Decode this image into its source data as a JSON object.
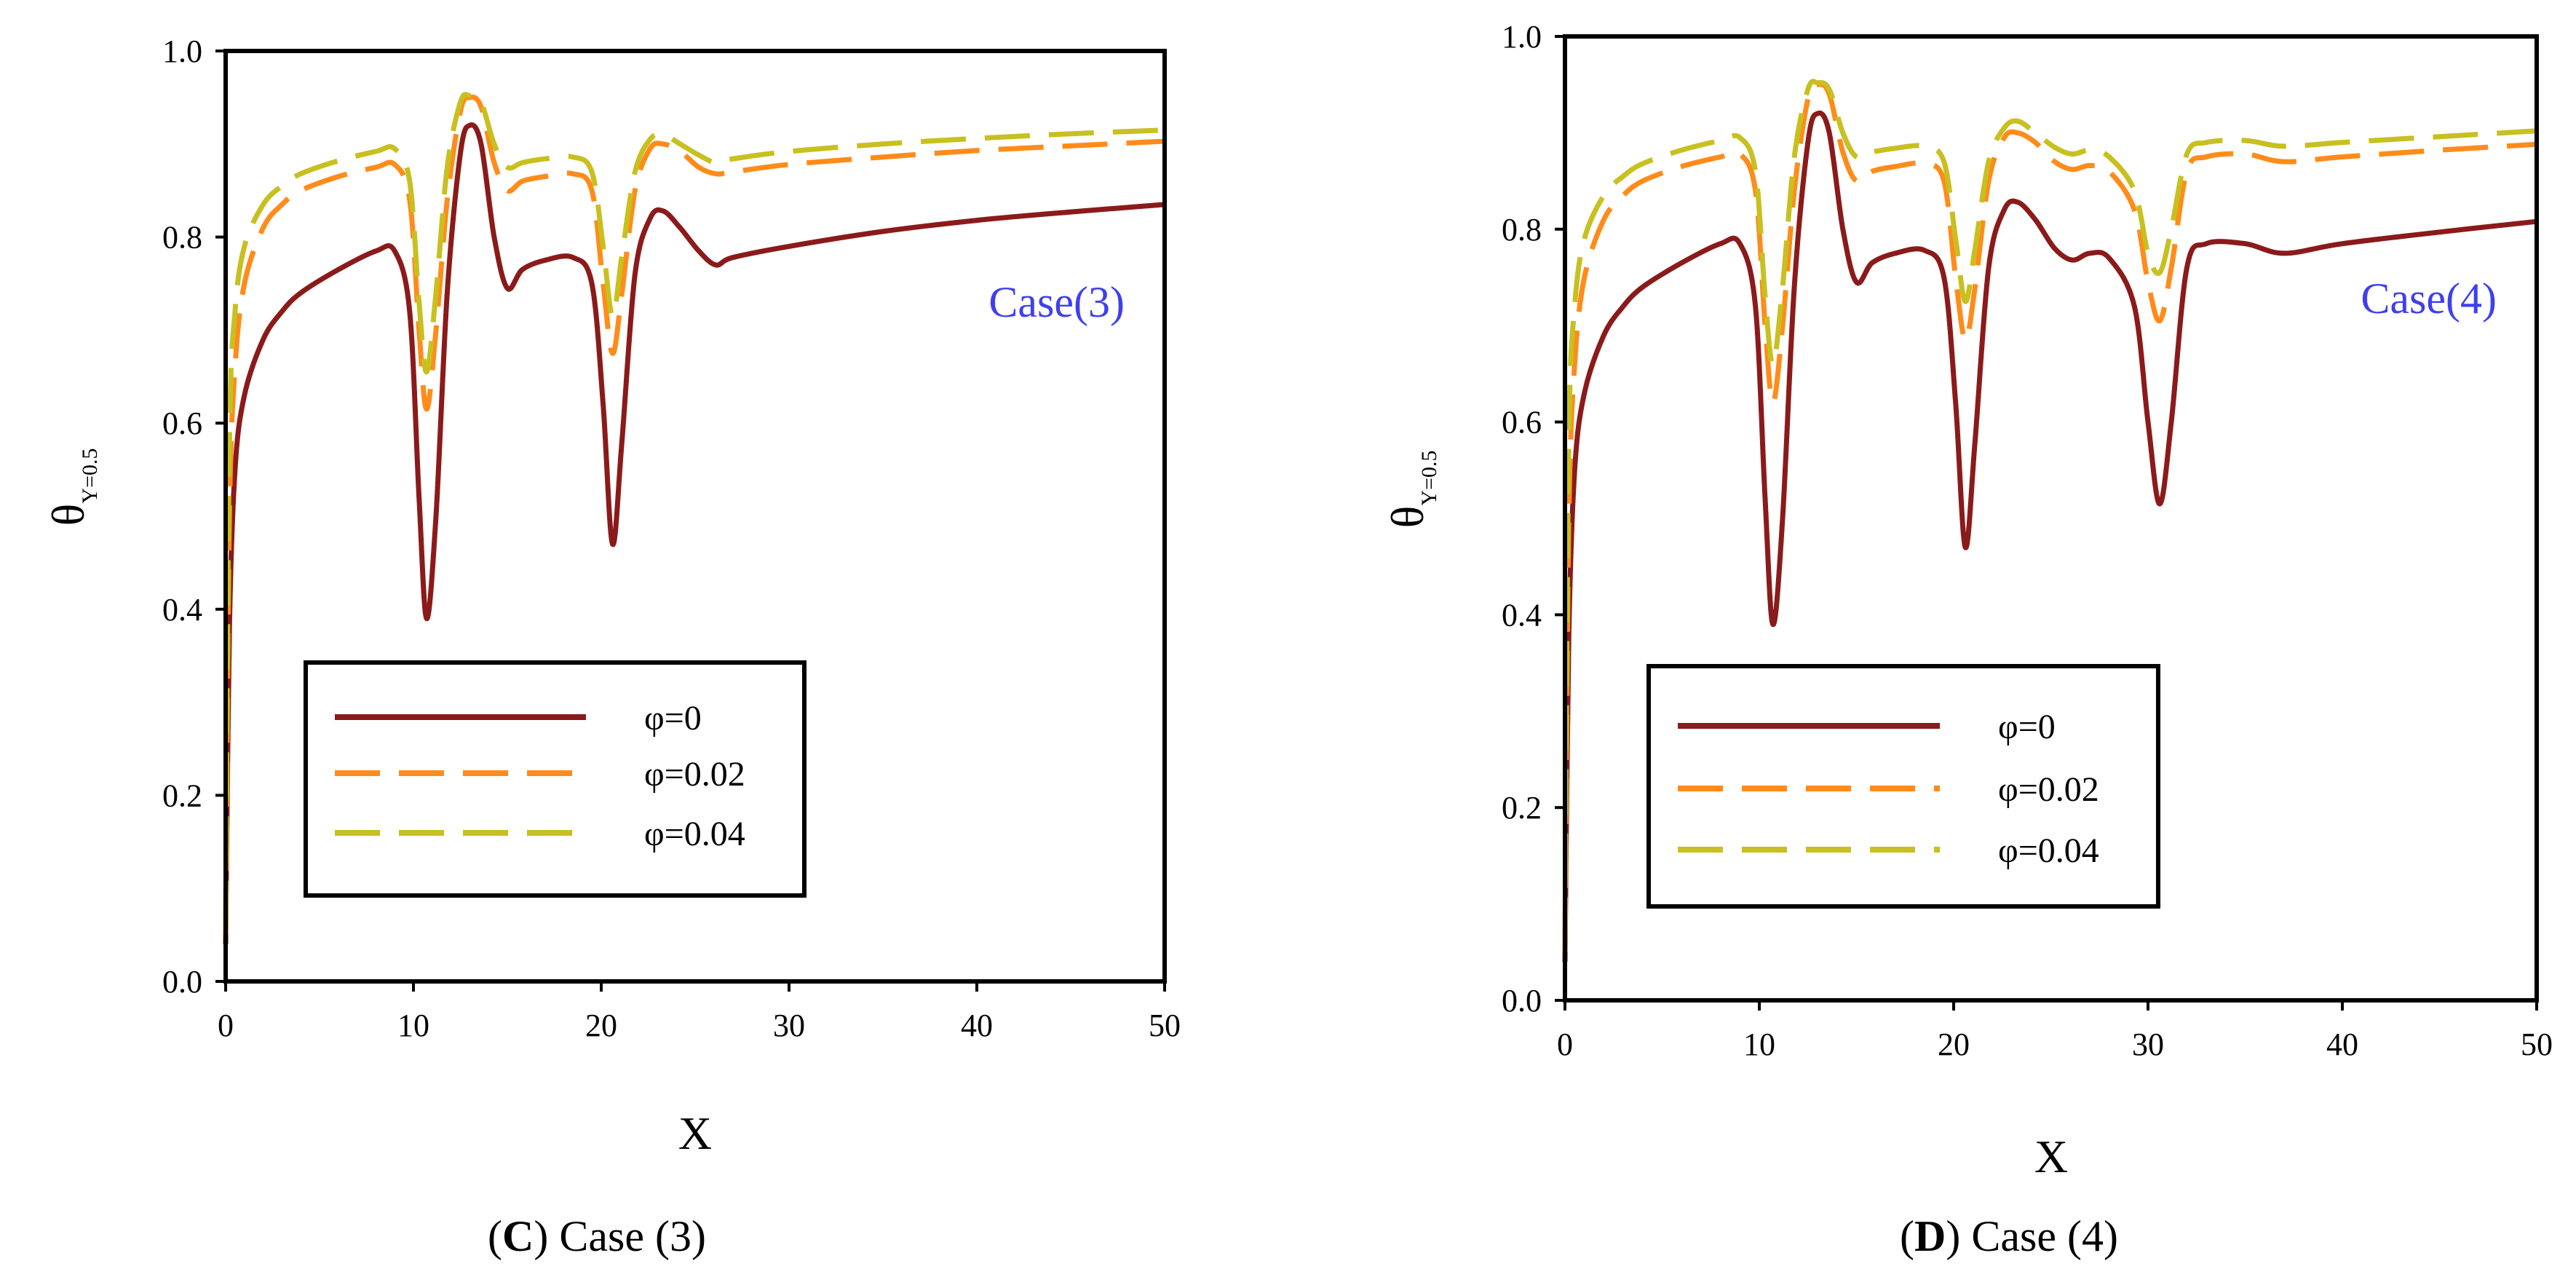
{
  "chart_data": [
    {
      "type": "line",
      "panel": "C",
      "caption_letter": "C",
      "caption_text": " Case (3)",
      "annotation": "Case(3)",
      "title": "",
      "xlabel": "X",
      "ylabel": "θ",
      "ylabel_sub": "Y=0.5",
      "xlim": [
        0,
        50
      ],
      "ylim": [
        0,
        1.0
      ],
      "xticks": [
        0,
        10,
        20,
        30,
        40,
        50
      ],
      "yticks": [
        0.0,
        0.2,
        0.4,
        0.6,
        0.8,
        1.0
      ],
      "xtick_labels": [
        "0",
        "10",
        "20",
        "30",
        "40",
        "50"
      ],
      "ytick_labels": [
        "0.0",
        "0.2",
        "0.4",
        "0.6",
        "0.8",
        "1.0"
      ],
      "legend": [
        "φ=0",
        "φ=0.02",
        "φ=0.04"
      ],
      "series": [
        {
          "name": "φ=0",
          "color": "#8b1a1a",
          "dash": "solid",
          "x": [
            0,
            0.2,
            0.5,
            1,
            2,
            3,
            4,
            6,
            8,
            9,
            9.8,
            10.3,
            10.7,
            11.2,
            11.8,
            12.5,
            13,
            13.6,
            14.3,
            15,
            15.8,
            17,
            18.5,
            19.5,
            20.1,
            20.6,
            21.1,
            21.8,
            22.6,
            23.3,
            24.2,
            25.2,
            26.1,
            27,
            30,
            35,
            40,
            45,
            50
          ],
          "y": [
            0.04,
            0.38,
            0.55,
            0.63,
            0.69,
            0.72,
            0.74,
            0.765,
            0.785,
            0.785,
            0.72,
            0.52,
            0.39,
            0.5,
            0.74,
            0.89,
            0.92,
            0.9,
            0.8,
            0.745,
            0.765,
            0.775,
            0.778,
            0.75,
            0.62,
            0.47,
            0.58,
            0.76,
            0.82,
            0.828,
            0.81,
            0.785,
            0.77,
            0.778,
            0.79,
            0.806,
            0.818,
            0.827,
            0.835
          ]
        },
        {
          "name": "φ=0.02",
          "color": "#ff8c1a",
          "dash": "long",
          "x": [
            0,
            0.2,
            0.5,
            1,
            2,
            3,
            4,
            6,
            8,
            9,
            9.8,
            10.3,
            10.7,
            11.2,
            11.8,
            12.5,
            13,
            13.6,
            14.3,
            15,
            15.8,
            17,
            18.5,
            19.5,
            20.1,
            20.6,
            21.1,
            21.8,
            22.6,
            23.3,
            24.2,
            25.2,
            26.1,
            27,
            30,
            35,
            40,
            45,
            50
          ],
          "y": [
            0.05,
            0.5,
            0.66,
            0.75,
            0.81,
            0.835,
            0.85,
            0.865,
            0.875,
            0.878,
            0.84,
            0.7,
            0.615,
            0.7,
            0.84,
            0.935,
            0.95,
            0.94,
            0.88,
            0.85,
            0.86,
            0.865,
            0.868,
            0.85,
            0.75,
            0.675,
            0.74,
            0.85,
            0.895,
            0.9,
            0.892,
            0.875,
            0.868,
            0.87,
            0.878,
            0.886,
            0.893,
            0.898,
            0.903
          ]
        },
        {
          "name": "φ=0.04",
          "color": "#c8c020",
          "dash": "long",
          "x": [
            0,
            0.2,
            0.5,
            1,
            2,
            3,
            4,
            6,
            8,
            9,
            9.8,
            10.3,
            10.7,
            11.2,
            11.8,
            12.5,
            13,
            13.6,
            14.3,
            15,
            15.8,
            17,
            18.5,
            19.5,
            20.1,
            20.6,
            21.1,
            21.8,
            22.6,
            23.3,
            24.2,
            25.2,
            26.1,
            27,
            30,
            35,
            40,
            45,
            50
          ],
          "y": [
            0.06,
            0.58,
            0.72,
            0.79,
            0.835,
            0.855,
            0.868,
            0.882,
            0.892,
            0.895,
            0.86,
            0.73,
            0.655,
            0.74,
            0.875,
            0.945,
            0.952,
            0.945,
            0.9,
            0.875,
            0.88,
            0.884,
            0.886,
            0.87,
            0.79,
            0.715,
            0.78,
            0.87,
            0.905,
            0.91,
            0.9,
            0.888,
            0.88,
            0.884,
            0.892,
            0.9,
            0.906,
            0.911,
            0.915
          ]
        }
      ]
    },
    {
      "type": "line",
      "panel": "D",
      "caption_letter": "D",
      "caption_text": " Case (4)",
      "annotation": "Case(4)",
      "title": "",
      "xlabel": "X",
      "ylabel": "θ",
      "ylabel_sub": "Y=0.5",
      "xlim": [
        0,
        50
      ],
      "ylim": [
        0,
        1.0
      ],
      "xticks": [
        0,
        10,
        20,
        30,
        40,
        50
      ],
      "yticks": [
        0.0,
        0.2,
        0.4,
        0.6,
        0.8,
        1.0
      ],
      "xtick_labels": [
        "0",
        "10",
        "20",
        "30",
        "40",
        "50"
      ],
      "ytick_labels": [
        "0.0",
        "0.2",
        "0.4",
        "0.6",
        "0.8",
        "1.0"
      ],
      "legend": [
        "φ=0",
        "φ=0.02",
        "φ=0.04"
      ],
      "series": [
        {
          "name": "φ=0",
          "color": "#8b1a1a",
          "dash": "solid",
          "x": [
            0,
            0.2,
            0.5,
            1,
            2,
            3,
            4,
            6,
            8,
            9,
            9.8,
            10.3,
            10.7,
            11.2,
            11.8,
            12.5,
            13,
            13.6,
            14.3,
            15,
            15.8,
            17,
            18.5,
            19.5,
            20.1,
            20.6,
            21.1,
            21.8,
            22.6,
            23.3,
            24.2,
            25.2,
            26.1,
            27,
            28,
            29.3,
            30,
            30.6,
            31.2,
            32,
            33,
            35,
            37,
            40,
            45,
            50
          ],
          "y": [
            0.04,
            0.38,
            0.55,
            0.63,
            0.69,
            0.72,
            0.74,
            0.765,
            0.785,
            0.785,
            0.72,
            0.52,
            0.39,
            0.5,
            0.74,
            0.89,
            0.92,
            0.9,
            0.8,
            0.745,
            0.765,
            0.775,
            0.778,
            0.75,
            0.62,
            0.47,
            0.58,
            0.76,
            0.82,
            0.828,
            0.81,
            0.78,
            0.768,
            0.775,
            0.77,
            0.72,
            0.6,
            0.515,
            0.6,
            0.76,
            0.785,
            0.785,
            0.775,
            0.785,
            0.797,
            0.808
          ]
        },
        {
          "name": "φ=0.02",
          "color": "#ff8c1a",
          "dash": "long",
          "x": [
            0,
            0.2,
            0.5,
            1,
            2,
            3,
            4,
            6,
            8,
            9,
            9.8,
            10.3,
            10.7,
            11.2,
            11.8,
            12.5,
            13,
            13.6,
            14.3,
            15,
            15.8,
            17,
            18.5,
            19.5,
            20.1,
            20.6,
            21.1,
            21.8,
            22.6,
            23.3,
            24.2,
            25.2,
            26.1,
            27,
            28,
            29.3,
            30,
            30.6,
            31.2,
            32,
            33,
            35,
            37,
            40,
            45,
            50
          ],
          "y": [
            0.05,
            0.5,
            0.66,
            0.75,
            0.81,
            0.835,
            0.85,
            0.865,
            0.875,
            0.878,
            0.84,
            0.7,
            0.62,
            0.7,
            0.84,
            0.935,
            0.95,
            0.94,
            0.88,
            0.85,
            0.86,
            0.865,
            0.868,
            0.85,
            0.75,
            0.685,
            0.74,
            0.85,
            0.895,
            0.9,
            0.89,
            0.87,
            0.862,
            0.866,
            0.86,
            0.82,
            0.745,
            0.705,
            0.76,
            0.86,
            0.875,
            0.878,
            0.87,
            0.875,
            0.882,
            0.888
          ]
        },
        {
          "name": "φ=0.04",
          "color": "#c8c020",
          "dash": "long",
          "x": [
            0,
            0.2,
            0.5,
            1,
            2,
            3,
            4,
            6,
            8,
            9,
            9.8,
            10.3,
            10.7,
            11.2,
            11.8,
            12.5,
            13,
            13.6,
            14.3,
            15,
            15.8,
            17,
            18.5,
            19.5,
            20.1,
            20.6,
            21.1,
            21.8,
            22.6,
            23.3,
            24.2,
            25.2,
            26.1,
            27,
            28,
            29.3,
            30,
            30.6,
            31.2,
            32,
            33,
            35,
            37,
            40,
            45,
            50
          ],
          "y": [
            0.06,
            0.58,
            0.72,
            0.79,
            0.835,
            0.855,
            0.868,
            0.882,
            0.892,
            0.895,
            0.86,
            0.73,
            0.66,
            0.74,
            0.875,
            0.945,
            0.952,
            0.945,
            0.9,
            0.875,
            0.88,
            0.884,
            0.886,
            0.87,
            0.79,
            0.725,
            0.78,
            0.87,
            0.905,
            0.912,
            0.9,
            0.885,
            0.878,
            0.882,
            0.875,
            0.84,
            0.775,
            0.755,
            0.8,
            0.878,
            0.89,
            0.892,
            0.886,
            0.89,
            0.896,
            0.902
          ]
        }
      ]
    }
  ]
}
